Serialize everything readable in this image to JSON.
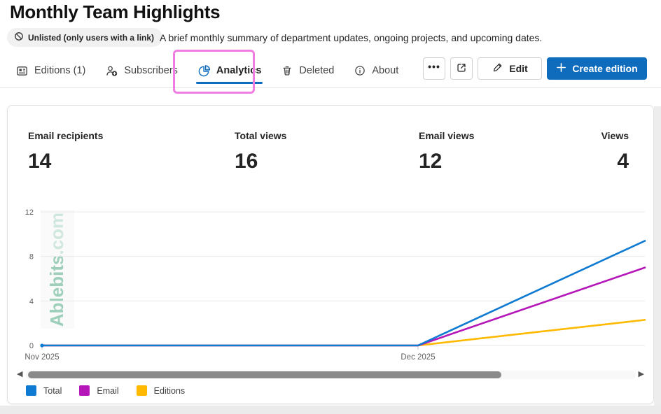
{
  "page": {
    "title": "Monthly Team Highlights",
    "visibility_badge": "Unlisted (only users with a link)",
    "description": "A brief monthly summary of department updates, ongoing projects, and upcoming dates."
  },
  "tabs": [
    {
      "label": "Editions (1)",
      "icon": "news-icon",
      "active": false
    },
    {
      "label": "Subscribers",
      "icon": "person-add-icon",
      "active": false
    },
    {
      "label": "Analytics",
      "icon": "pie-chart-icon",
      "active": true,
      "annotated": "magenta highlight box"
    },
    {
      "label": "Deleted",
      "icon": "trash-icon",
      "active": false
    },
    {
      "label": "About",
      "icon": "info-icon",
      "active": false
    }
  ],
  "toolbar": {
    "more_label": "•••",
    "share_icon": "share-icon",
    "edit_label": "Edit",
    "create_label": "Create edition"
  },
  "stats": [
    {
      "label": "Email recipients",
      "value": "14"
    },
    {
      "label": "Total views",
      "value": "16"
    },
    {
      "label": "Email views",
      "value": "12"
    },
    {
      "label": "Views",
      "value": "4"
    }
  ],
  "watermark": {
    "main": "Ablebits",
    "suffix": ".com"
  },
  "chart_data": {
    "type": "line",
    "title": "",
    "xlabel": "",
    "ylabel": "",
    "ylim": [
      0,
      12
    ],
    "y_ticks": [
      0,
      4,
      8,
      12
    ],
    "x_ticks": [
      {
        "label": "Nov 2025",
        "frac": 0.0
      },
      {
        "label": "Dec 2025",
        "frac": 0.6237
      }
    ],
    "grid": true,
    "legend_position": "bottom-left",
    "note": "All series flat at 0 from Nov 2025 to Dec 2025, then rise linearly; lines are clipped by the right edge of the horizontally scrollable plot.",
    "series": [
      {
        "name": "Total",
        "color": "#0f7ad1",
        "points": [
          {
            "x": "Nov 2025",
            "frac": 0.0,
            "y": 0
          },
          {
            "x": "Dec 2025",
            "frac": 0.6237,
            "y": 0
          },
          {
            "x": "right-edge-clip",
            "frac": 1.0,
            "y": 9.4
          }
        ]
      },
      {
        "name": "Email",
        "color": "#b516b8",
        "points": [
          {
            "x": "Nov 2025",
            "frac": 0.0,
            "y": 0
          },
          {
            "x": "Dec 2025",
            "frac": 0.6237,
            "y": 0
          },
          {
            "x": "right-edge-clip",
            "frac": 1.0,
            "y": 7.0
          }
        ]
      },
      {
        "name": "Editions",
        "color": "#ffb900",
        "points": [
          {
            "x": "Nov 2025",
            "frac": 0.0,
            "y": 0
          },
          {
            "x": "Dec 2025",
            "frac": 0.6237,
            "y": 0
          },
          {
            "x": "right-edge-clip",
            "frac": 1.0,
            "y": 2.3
          }
        ]
      }
    ]
  },
  "scrollbar": {
    "left_icon": "◀",
    "right_icon": "▶"
  },
  "colors": {
    "accent_blue": "#0f6cbd",
    "annotation_pink": "#ef7de2",
    "watermark_green": "#9dcfba",
    "gridline": "#e8e8e8",
    "axis_text": "#616161"
  }
}
